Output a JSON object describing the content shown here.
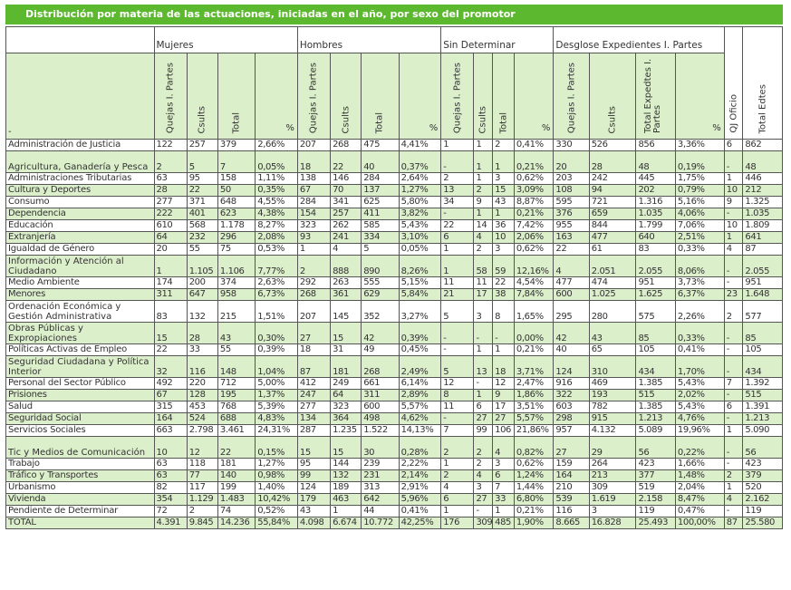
{
  "title": "Distribución por materia de las actuaciones, iniciadas en el año, por sexo del promotor",
  "groups": {
    "mujeres": "Mujeres",
    "hombres": "Hombres",
    "sin_determinar": "Sin Determinar",
    "desglose": "Desglose Expedientes I. Partes"
  },
  "col_headers": {
    "first": "-",
    "quejas": "Quejas I. Partes",
    "csults": "Csults",
    "total": "Total",
    "pct": "%",
    "total_expedtes": "Total Expedtes I. Partes",
    "qj_oficio": "QJ Oficio",
    "total_edtes": "Total Edtes"
  },
  "rows": [
    {
      "label": "Administración de Justicia",
      "m": [
        "122",
        "257",
        "379",
        "2,66%"
      ],
      "h": [
        "207",
        "268",
        "475",
        "4,41%"
      ],
      "s": [
        "1",
        "1",
        "2",
        "0,41%"
      ],
      "d": [
        "330",
        "526",
        "856",
        "3,36%"
      ],
      "qj": "6",
      "tot": "862"
    },
    {
      "label": "Agricultura, Ganadería y Pesca",
      "m": [
        "2",
        "5",
        "7",
        "0,05%"
      ],
      "h": [
        "18",
        "22",
        "40",
        "0,37%"
      ],
      "s": [
        "-",
        "1",
        "1",
        "0,21%"
      ],
      "d": [
        "20",
        "28",
        "48",
        "0,19%"
      ],
      "qj": "-",
      "tot": "48"
    },
    {
      "label": "Administraciones Tributarias",
      "m": [
        "63",
        "95",
        "158",
        "1,11%"
      ],
      "h": [
        "138",
        "146",
        "284",
        "2,64%"
      ],
      "s": [
        "2",
        "1",
        "3",
        "0,62%"
      ],
      "d": [
        "203",
        "242",
        "445",
        "1,75%"
      ],
      "qj": "1",
      "tot": "446"
    },
    {
      "label": "Cultura y Deportes",
      "m": [
        "28",
        "22",
        "50",
        "0,35%"
      ],
      "h": [
        "67",
        "70",
        "137",
        "1,27%"
      ],
      "s": [
        "13",
        "2",
        "15",
        "3,09%"
      ],
      "d": [
        "108",
        "94",
        "202",
        "0,79%"
      ],
      "qj": "10",
      "tot": "212"
    },
    {
      "label": "Consumo",
      "m": [
        "277",
        "371",
        "648",
        "4,55%"
      ],
      "h": [
        "284",
        "341",
        "625",
        "5,80%"
      ],
      "s": [
        "34",
        "9",
        "43",
        "8,87%"
      ],
      "d": [
        "595",
        "721",
        "1.316",
        "5,16%"
      ],
      "qj": "9",
      "tot": "1.325"
    },
    {
      "label": "Dependencia",
      "m": [
        "222",
        "401",
        "623",
        "4,38%"
      ],
      "h": [
        "154",
        "257",
        "411",
        "3,82%"
      ],
      "s": [
        "-",
        "1",
        "1",
        "0,21%"
      ],
      "d": [
        "376",
        "659",
        "1.035",
        "4,06%"
      ],
      "qj": "-",
      "tot": "1.035"
    },
    {
      "label": "Educación",
      "m": [
        "610",
        "568",
        "1.178",
        "8,27%"
      ],
      "h": [
        "323",
        "262",
        "585",
        "5,43%"
      ],
      "s": [
        "22",
        "14",
        "36",
        "7,42%"
      ],
      "d": [
        "955",
        "844",
        "1.799",
        "7,06%"
      ],
      "qj": "10",
      "tot": "1.809"
    },
    {
      "label": "Extranjería",
      "m": [
        "64",
        "232",
        "296",
        "2,08%"
      ],
      "h": [
        "93",
        "241",
        "334",
        "3,10%"
      ],
      "s": [
        "6",
        "4",
        "10",
        "2,06%"
      ],
      "d": [
        "163",
        "477",
        "640",
        "2,51%"
      ],
      "qj": "1",
      "tot": "641"
    },
    {
      "label": "Igualdad de Género",
      "m": [
        "20",
        "55",
        "75",
        "0,53%"
      ],
      "h": [
        "1",
        "4",
        "5",
        "0,05%"
      ],
      "s": [
        "1",
        "2",
        "3",
        "0,62%"
      ],
      "d": [
        "22",
        "61",
        "83",
        "0,33%"
      ],
      "qj": "4",
      "tot": "87"
    },
    {
      "label": "Información y Atención al Ciudadano",
      "m": [
        "1",
        "1.105",
        "1.106",
        "7,77%"
      ],
      "h": [
        "2",
        "888",
        "890",
        "8,26%"
      ],
      "s": [
        "1",
        "58",
        "59",
        "12,16%"
      ],
      "d": [
        "4",
        "2.051",
        "2.055",
        "8,06%"
      ],
      "qj": "-",
      "tot": "2.055"
    },
    {
      "label": "Medio Ambiente",
      "m": [
        "174",
        "200",
        "374",
        "2,63%"
      ],
      "h": [
        "292",
        "263",
        "555",
        "5,15%"
      ],
      "s": [
        "11",
        "11",
        "22",
        "4,54%"
      ],
      "d": [
        "477",
        "474",
        "951",
        "3,73%"
      ],
      "qj": "-",
      "tot": "951"
    },
    {
      "label": "Menores",
      "m": [
        "311",
        "647",
        "958",
        "6,73%"
      ],
      "h": [
        "268",
        "361",
        "629",
        "5,84%"
      ],
      "s": [
        "21",
        "17",
        "38",
        "7,84%"
      ],
      "d": [
        "600",
        "1.025",
        "1.625",
        "6,37%"
      ],
      "qj": "23",
      "tot": "1.648"
    },
    {
      "label": "Ordenación Económica y Gestión Administrativa",
      "m": [
        "83",
        "132",
        "215",
        "1,51%"
      ],
      "h": [
        "207",
        "145",
        "352",
        "3,27%"
      ],
      "s": [
        "5",
        "3",
        "8",
        "1,65%"
      ],
      "d": [
        "295",
        "280",
        "575",
        "2,26%"
      ],
      "qj": "2",
      "tot": "577"
    },
    {
      "label": "Obras Públicas y Expropiaciones",
      "m": [
        "15",
        "28",
        "43",
        "0,30%"
      ],
      "h": [
        "27",
        "15",
        "42",
        "0,39%"
      ],
      "s": [
        "-",
        "-",
        "-",
        "0,00%"
      ],
      "d": [
        "42",
        "43",
        "85",
        "0,33%"
      ],
      "qj": "-",
      "tot": "85"
    },
    {
      "label": "Políticas Activas de Empleo",
      "m": [
        "22",
        "33",
        "55",
        "0,39%"
      ],
      "h": [
        "18",
        "31",
        "49",
        "0,45%"
      ],
      "s": [
        "-",
        "1",
        "1",
        "0,21%"
      ],
      "d": [
        "40",
        "65",
        "105",
        "0,41%"
      ],
      "qj": "-",
      "tot": "105"
    },
    {
      "label": "Seguridad Ciudadana y Política Interior",
      "m": [
        "32",
        "116",
        "148",
        "1,04%"
      ],
      "h": [
        "87",
        "181",
        "268",
        "2,49%"
      ],
      "s": [
        "5",
        "13",
        "18",
        "3,71%"
      ],
      "d": [
        "124",
        "310",
        "434",
        "1,70%"
      ],
      "qj": "-",
      "tot": "434"
    },
    {
      "label": "Personal del Sector Público",
      "m": [
        "492",
        "220",
        "712",
        "5,00%"
      ],
      "h": [
        "412",
        "249",
        "661",
        "6,14%"
      ],
      "s": [
        "12",
        "-",
        "12",
        "2,47%"
      ],
      "d": [
        "916",
        "469",
        "1.385",
        "5,43%"
      ],
      "qj": "7",
      "tot": "1.392"
    },
    {
      "label": "Prisiones",
      "m": [
        "67",
        "128",
        "195",
        "1,37%"
      ],
      "h": [
        "247",
        "64",
        "311",
        "2,89%"
      ],
      "s": [
        "8",
        "1",
        "9",
        "1,86%"
      ],
      "d": [
        "322",
        "193",
        "515",
        "2,02%"
      ],
      "qj": "-",
      "tot": "515"
    },
    {
      "label": "Salud",
      "m": [
        "315",
        "453",
        "768",
        "5,39%"
      ],
      "h": [
        "277",
        "323",
        "600",
        "5,57%"
      ],
      "s": [
        "11",
        "6",
        "17",
        "3,51%"
      ],
      "d": [
        "603",
        "782",
        "1.385",
        "5,43%"
      ],
      "qj": "6",
      "tot": "1.391"
    },
    {
      "label": "Seguridad Social",
      "m": [
        "164",
        "524",
        "688",
        "4,83%"
      ],
      "h": [
        "134",
        "364",
        "498",
        "4,62%"
      ],
      "s": [
        "-",
        "27",
        "27",
        "5,57%"
      ],
      "d": [
        "298",
        "915",
        "1.213",
        "4,76%"
      ],
      "qj": "-",
      "tot": "1.213"
    },
    {
      "label": "Servicios Sociales",
      "m": [
        "663",
        "2.798",
        "3.461",
        "24,31%"
      ],
      "h": [
        "287",
        "1.235",
        "1.522",
        "14,13%"
      ],
      "s": [
        "7",
        "99",
        "106",
        "21,86%"
      ],
      "d": [
        "957",
        "4.132",
        "5.089",
        "19,96%"
      ],
      "qj": "1",
      "tot": "5.090"
    },
    {
      "label": "Tic y Medios de Comunicación",
      "m": [
        "10",
        "12",
        "22",
        "0,15%"
      ],
      "h": [
        "15",
        "15",
        "30",
        "0,28%"
      ],
      "s": [
        "2",
        "2",
        "4",
        "0,82%"
      ],
      "d": [
        "27",
        "29",
        "56",
        "0,22%"
      ],
      "qj": "-",
      "tot": "56"
    },
    {
      "label": "Trabajo",
      "m": [
        "63",
        "118",
        "181",
        "1,27%"
      ],
      "h": [
        "95",
        "144",
        "239",
        "2,22%"
      ],
      "s": [
        "1",
        "2",
        "3",
        "0,62%"
      ],
      "d": [
        "159",
        "264",
        "423",
        "1,66%"
      ],
      "qj": "-",
      "tot": "423"
    },
    {
      "label": "Tráfico y Transportes",
      "m": [
        "63",
        "77",
        "140",
        "0,98%"
      ],
      "h": [
        "99",
        "132",
        "231",
        "2,14%"
      ],
      "s": [
        "2",
        "4",
        "6",
        "1,24%"
      ],
      "d": [
        "164",
        "213",
        "377",
        "1,48%"
      ],
      "qj": "2",
      "tot": "379"
    },
    {
      "label": "Urbanismo",
      "m": [
        "82",
        "117",
        "199",
        "1,40%"
      ],
      "h": [
        "124",
        "189",
        "313",
        "2,91%"
      ],
      "s": [
        "4",
        "3",
        "7",
        "1,44%"
      ],
      "d": [
        "210",
        "309",
        "519",
        "2,04%"
      ],
      "qj": "1",
      "tot": "520"
    },
    {
      "label": "Vivienda",
      "m": [
        "354",
        "1.129",
        "1.483",
        "10,42%"
      ],
      "h": [
        "179",
        "463",
        "642",
        "5,96%"
      ],
      "s": [
        "6",
        "27",
        "33",
        "6,80%"
      ],
      "d": [
        "539",
        "1.619",
        "2.158",
        "8,47%"
      ],
      "qj": "4",
      "tot": "2.162"
    },
    {
      "label": "Pendiente de Determinar",
      "m": [
        "72",
        "2",
        "74",
        "0,52%"
      ],
      "h": [
        "43",
        "1",
        "44",
        "0,41%"
      ],
      "s": [
        "1",
        "-",
        "1",
        "0,21%"
      ],
      "d": [
        "116",
        "3",
        "119",
        "0,47%"
      ],
      "qj": "-",
      "tot": "119"
    },
    {
      "label": "TOTAL",
      "m": [
        "4.391",
        "9.845",
        "14.236",
        "55,84%"
      ],
      "h": [
        "4.098",
        "6.674",
        "10.772",
        "42,25%"
      ],
      "s": [
        "176",
        "309",
        "485",
        "1,90%"
      ],
      "d": [
        "8.665",
        "16.828",
        "25.493",
        "100,00%"
      ],
      "qj": "87",
      "tot": "25.580"
    }
  ]
}
